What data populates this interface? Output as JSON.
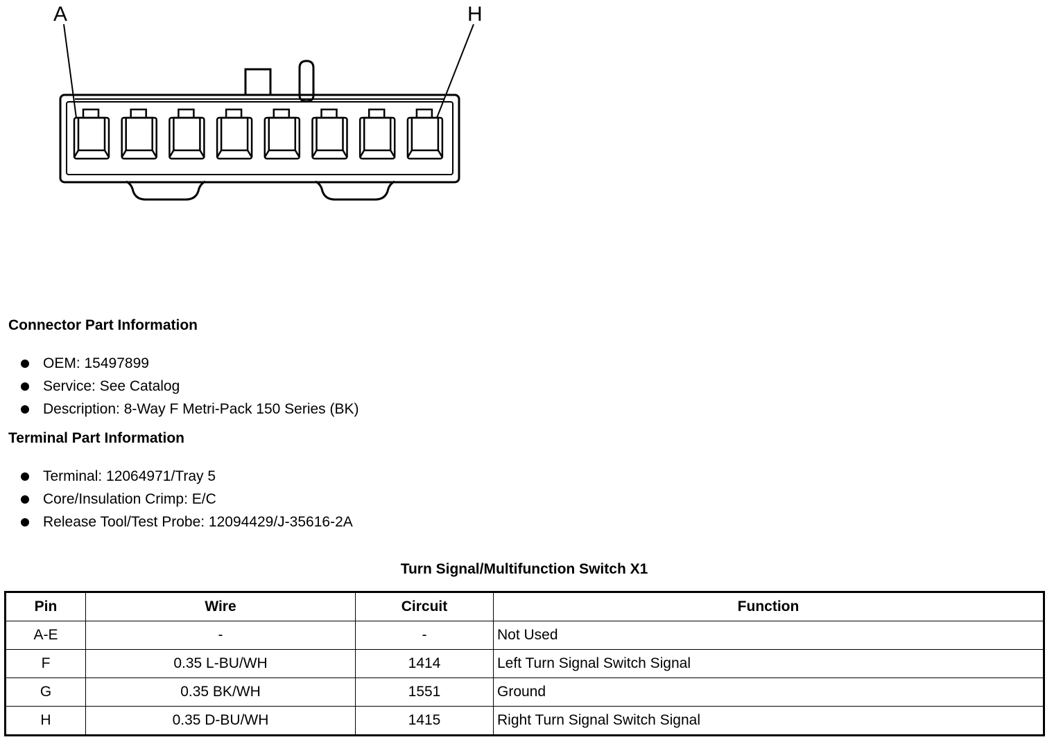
{
  "connector": {
    "cavity_count": 8,
    "labels": {
      "left": "A",
      "right": "H"
    }
  },
  "connector_info": {
    "heading": "Connector Part Information",
    "items": [
      "OEM: 15497899",
      "Service: See Catalog",
      "Description: 8-Way F Metri-Pack 150 Series (BK)"
    ]
  },
  "terminal_info": {
    "heading": "Terminal Part Information",
    "items": [
      "Terminal: 12064971/Tray 5",
      "Core/Insulation Crimp: E/C",
      "Release Tool/Test Probe: 12094429/J-35616-2A"
    ]
  },
  "table": {
    "title": "Turn Signal/Multifunction Switch X1",
    "headers": [
      "Pin",
      "Wire",
      "Circuit",
      "Function"
    ],
    "rows": [
      [
        "A-E",
        "-",
        "-",
        "Not Used"
      ],
      [
        "F",
        "0.35 L-BU/WH",
        "1414",
        "Left Turn Signal Switch Signal"
      ],
      [
        "G",
        "0.35 BK/WH",
        "1551",
        "Ground"
      ],
      [
        "H",
        "0.35 D-BU/WH",
        "1415",
        "Right Turn Signal Switch Signal"
      ]
    ]
  }
}
